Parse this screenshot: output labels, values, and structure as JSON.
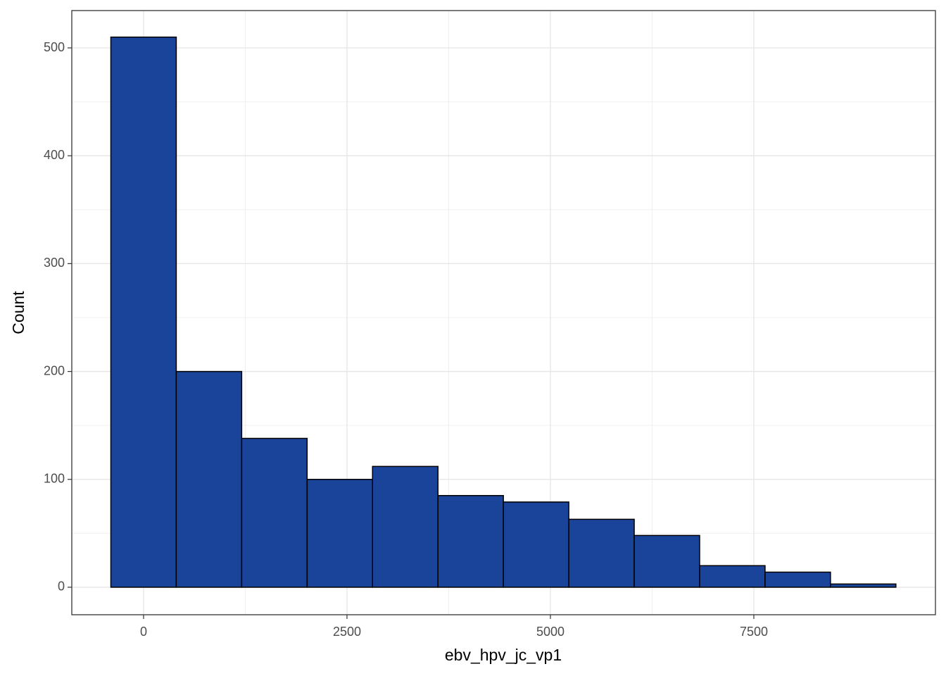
{
  "chart_data": {
    "type": "histogram",
    "x_label": "ebv_hpv_jc_vp1",
    "y_label": "Count",
    "bins": [
      -402,
      402,
      1206,
      2010,
      2814,
      3618,
      4422,
      5226,
      6030,
      6834,
      7638,
      8442,
      9246
    ],
    "values": [
      510,
      200,
      138,
      100,
      112,
      85,
      79,
      63,
      48,
      20,
      14,
      3
    ],
    "color": "#1a449a",
    "edge_color": "#000000",
    "xlim": [
      -882,
      9732
    ],
    "xticks": [
      0,
      2500,
      5000,
      7500
    ],
    "ylim": [
      -25.5,
      534.6
    ],
    "yticks": [
      0,
      100,
      200,
      300,
      400,
      500
    ],
    "grid": true
  }
}
